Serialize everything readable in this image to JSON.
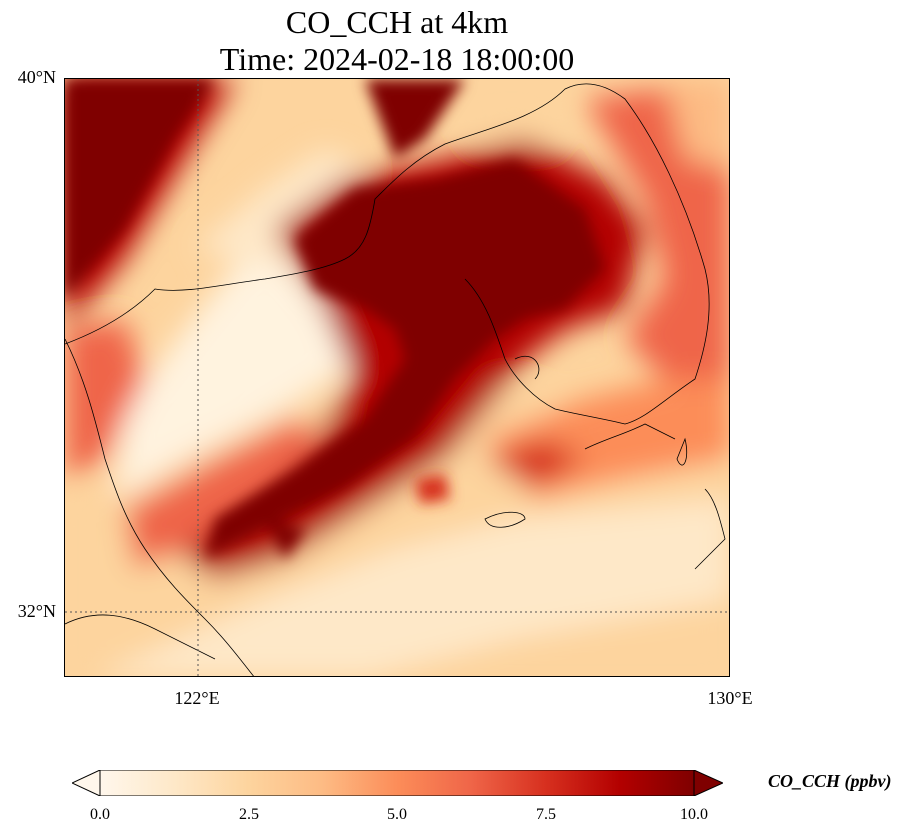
{
  "title_line1": "CO_CCH at 4km",
  "title_line2": "Time: 2024-02-18 18:00:00",
  "map": {
    "lon_range": [
      120,
      130
    ],
    "lat_range": [
      31,
      40
    ],
    "gridlines": {
      "lon": [
        122
      ],
      "lat": [
        32
      ]
    },
    "lat_labels": [
      "40°N",
      "32°N"
    ],
    "lon_labels": [
      "122°E",
      "130°E"
    ],
    "field_description_levels": {
      "min": 0.0,
      "max": 10.0
    }
  },
  "colorbar": {
    "label": "CO_CCH (ppbv)",
    "ticks": [
      "0.0",
      "2.5",
      "5.0",
      "7.5",
      "10.0"
    ],
    "extend": "both",
    "colormap": "OrRd",
    "colors": [
      "#fff7ec",
      "#fee8c8",
      "#fdd49e",
      "#fdbb84",
      "#fc8d59",
      "#ef6548",
      "#d7301f",
      "#b30000",
      "#7f0000"
    ]
  }
}
